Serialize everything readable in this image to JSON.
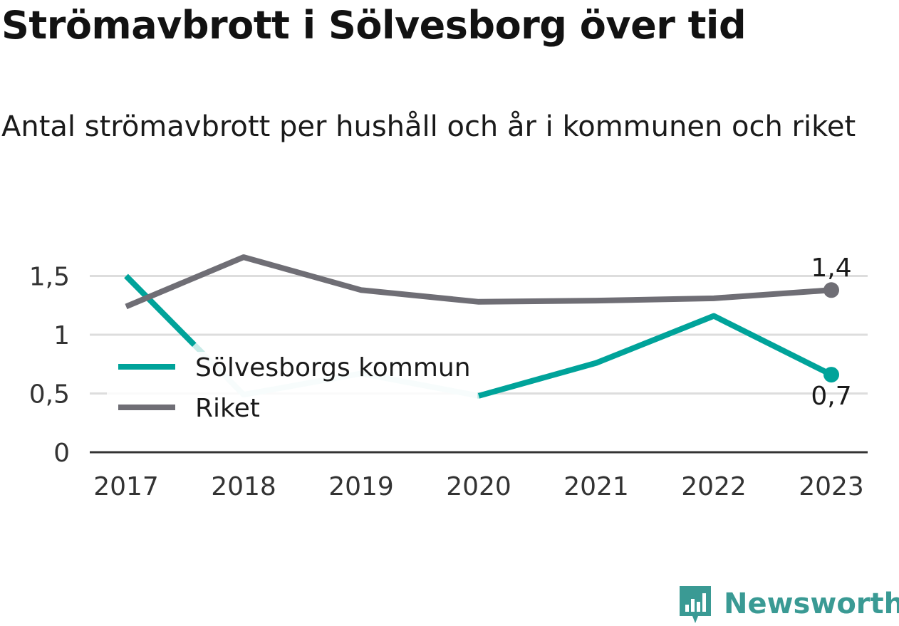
{
  "title": "Strömavbrott i Sölvesborg över tid",
  "subtitle": "Antal strömavbrott per hushåll och år i kommunen och riket",
  "brand": "Newsworthy",
  "chart_data": {
    "type": "line",
    "categories": [
      "2017",
      "2018",
      "2019",
      "2020",
      "2021",
      "2022",
      "2023"
    ],
    "yticks": [
      "0",
      "0,5",
      "1",
      "1,5"
    ],
    "ylim": [
      0,
      1.6
    ],
    "grid": true,
    "legend_position": "left, inside plot",
    "series": [
      {
        "name": "Sölvesborgs kommun",
        "color": "#00a39a",
        "faded_color": "#c9ebe8",
        "values": [
          1.5,
          0.49,
          0.67,
          0.48,
          0.76,
          1.16,
          0.66
        ],
        "end_label": "0,7"
      },
      {
        "name": "Riket",
        "color": "#6f6e75",
        "values": [
          1.24,
          1.66,
          1.38,
          1.28,
          1.29,
          1.31,
          1.38
        ],
        "end_label": "1,4"
      }
    ]
  }
}
